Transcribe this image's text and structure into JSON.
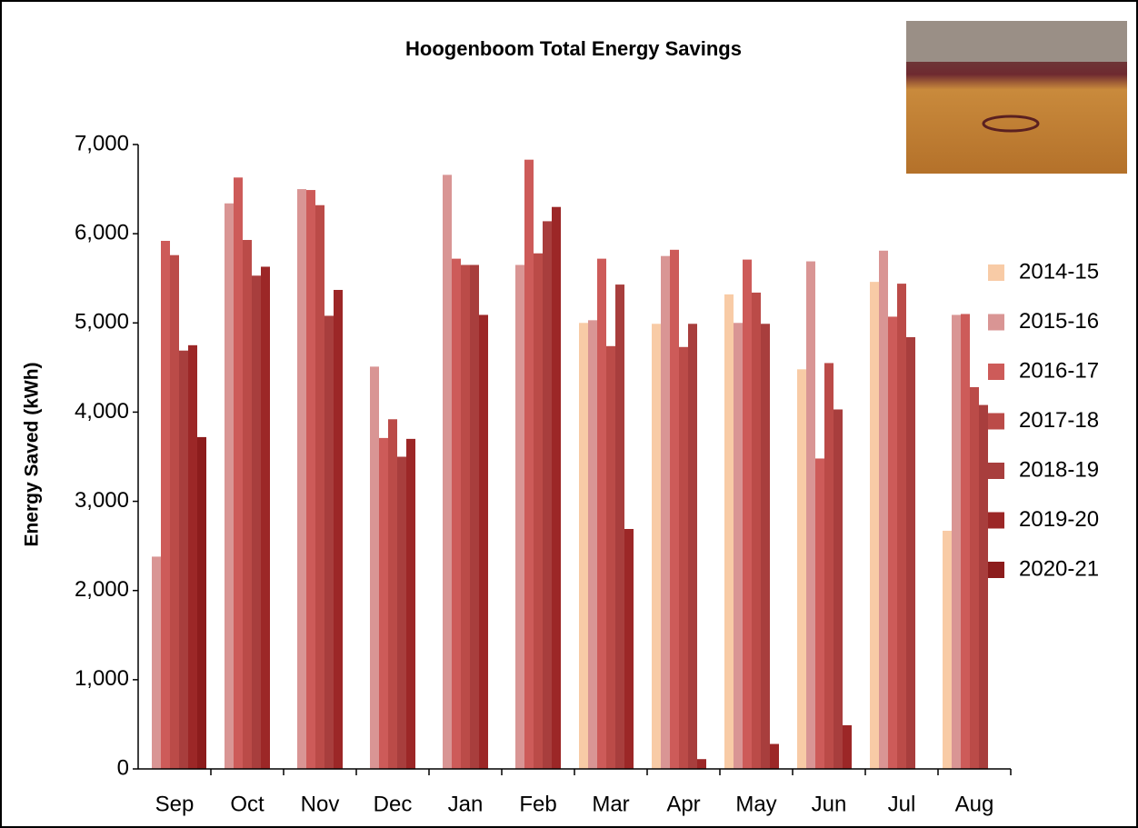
{
  "chart_data": {
    "type": "bar",
    "title": "Hoogenboom Total Energy Savings",
    "y_label": "Energy Saved (kWh)",
    "categories": [
      "Sep",
      "Oct",
      "Nov",
      "Dec",
      "Jan",
      "Feb",
      "Mar",
      "Apr",
      "May",
      "Jun",
      "Jul",
      "Aug"
    ],
    "series": [
      {
        "name": "2014-15",
        "color": "#f8cba6",
        "values": [
          null,
          null,
          null,
          null,
          null,
          null,
          5000,
          4990,
          5320,
          4480,
          5460,
          2670
        ]
      },
      {
        "name": "2015-16",
        "color": "#d99594",
        "values": [
          2380,
          6340,
          6500,
          4510,
          6660,
          5650,
          5030,
          5750,
          5000,
          5690,
          5810,
          5090
        ]
      },
      {
        "name": "2016-17",
        "color": "#cd5b59",
        "values": [
          5920,
          6630,
          6490,
          3710,
          5720,
          6830,
          5720,
          5820,
          5710,
          3480,
          5070,
          5100
        ]
      },
      {
        "name": "2017-18",
        "color": "#bb4b48",
        "values": [
          5760,
          5930,
          6320,
          3920,
          5650,
          5780,
          4740,
          4730,
          5340,
          4550,
          5440,
          4280
        ]
      },
      {
        "name": "2018-19",
        "color": "#a83e3d",
        "values": [
          4690,
          5530,
          5080,
          3500,
          5650,
          6140,
          5430,
          4990,
          4990,
          4030,
          4840,
          4080
        ]
      },
      {
        "name": "2019-20",
        "color": "#9c2727",
        "values": [
          4750,
          5630,
          5370,
          3700,
          5090,
          6300,
          2690,
          110,
          280,
          490,
          null,
          null
        ]
      },
      {
        "name": "2020-21",
        "color": "#8c1c1c",
        "values": [
          3720,
          null,
          null,
          null,
          null,
          null,
          null,
          null,
          null,
          null,
          null,
          null
        ]
      }
    ],
    "ylim": [
      0,
      7000
    ],
    "yticks": [
      0,
      {
        "value": 1000,
        "label": "1,000"
      },
      {
        "value": 2000,
        "label": "2,000"
      },
      {
        "value": 3000,
        "label": "3,000"
      },
      {
        "value": 4000,
        "label": "4,000"
      },
      {
        "value": 5000,
        "label": "5,000"
      },
      {
        "value": 6000,
        "label": "6,000"
      },
      {
        "value": 7000,
        "label": "7,000"
      }
    ],
    "grid": false,
    "legend": "right"
  }
}
